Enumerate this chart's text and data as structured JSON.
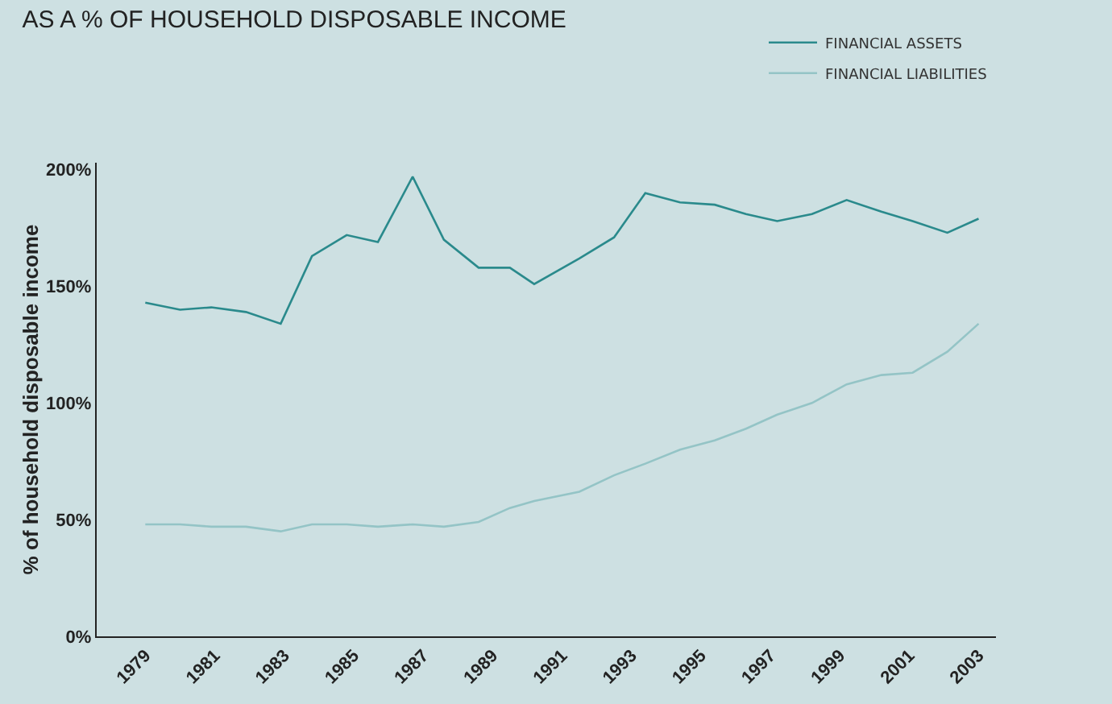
{
  "chart_data": {
    "type": "line",
    "title": "AS A % OF HOUSEHOLD DISPOSABLE INCOME",
    "ylabel": "% of household disposable income",
    "x": [
      1979,
      1980,
      1980.9,
      1981.9,
      1982.9,
      1983.8,
      1984.8,
      1985.7,
      1986.7,
      1987.6,
      1988.6,
      1989.5,
      1990.2,
      1991.5,
      1992.5,
      1993.4,
      1994.4,
      1995.4,
      1996.3,
      1997.2,
      1998.2,
      1999.2,
      2000.2,
      2001.1,
      2002.1,
      2003
    ],
    "series": [
      {
        "name": "FINANCIAL ASSETS",
        "color": "#2a8a8c",
        "values": [
          143,
          140,
          141,
          139,
          134,
          163,
          172,
          169,
          197,
          170,
          158,
          158,
          151,
          162,
          171,
          190,
          186,
          185,
          181,
          178,
          181,
          187,
          182,
          178,
          173,
          179
        ]
      },
      {
        "name": "FINANCIAL LIABILITIES",
        "color": "#94c4c6",
        "values": [
          48,
          48,
          47,
          47,
          45,
          48,
          48,
          47,
          48,
          47,
          49,
          55,
          58,
          62,
          69,
          74,
          80,
          84,
          89,
          95,
          100,
          108,
          112,
          113,
          122,
          134
        ]
      }
    ],
    "xlim": [
      1977.6,
      2003.5
    ],
    "xticks": [
      1979,
      1981,
      1983,
      1985,
      1987,
      1989,
      1991,
      1993,
      1995,
      1997,
      1999,
      2001,
      2003
    ],
    "ylim": [
      0,
      203
    ],
    "yticks": [
      {
        "value": 0,
        "label": "0%"
      },
      {
        "value": 50,
        "label": "50%"
      },
      {
        "value": 100,
        "label": "100%"
      },
      {
        "value": 150,
        "label": "150%"
      },
      {
        "value": 200,
        "label": "200%"
      }
    ],
    "grid": false,
    "legend": "top right",
    "marker": "none",
    "line_style": "solid"
  }
}
